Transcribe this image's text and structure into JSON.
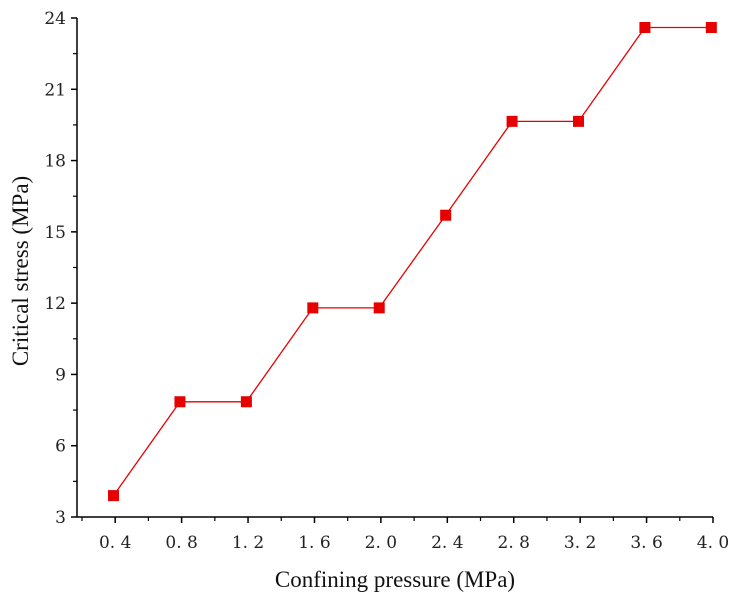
{
  "chart_data": {
    "type": "line",
    "title": "",
    "xlabel": "Confining pressure (MPa)",
    "ylabel": "Critical stress (MPa)",
    "xlim": [
      0.17,
      4.0
    ],
    "ylim": [
      3,
      24
    ],
    "x_ticks": [
      0.4,
      0.8,
      1.2,
      1.6,
      2.0,
      2.4,
      2.8,
      3.2,
      3.6,
      4.0
    ],
    "x_tick_labels": [
      "0. 4",
      "0. 8",
      "1. 2",
      "1. 6",
      "2. 0",
      "2. 4",
      "2. 8",
      "3. 2",
      "3. 6",
      "4. 0"
    ],
    "y_ticks": [
      3,
      6,
      9,
      12,
      15,
      18,
      21,
      24
    ],
    "y_tick_labels": [
      "3",
      "6",
      "9",
      "12",
      "15",
      "18",
      "21",
      "24"
    ],
    "grid": false,
    "legend": "none",
    "series": [
      {
        "name": "Critical stress",
        "color": "#e60000",
        "marker": "square",
        "x": [
          0.39,
          0.79,
          1.19,
          1.59,
          1.99,
          2.39,
          2.79,
          3.19,
          3.59,
          3.99
        ],
        "y": [
          3.9,
          7.85,
          7.85,
          11.8,
          11.8,
          15.7,
          19.65,
          19.65,
          23.6,
          23.6
        ]
      }
    ]
  }
}
